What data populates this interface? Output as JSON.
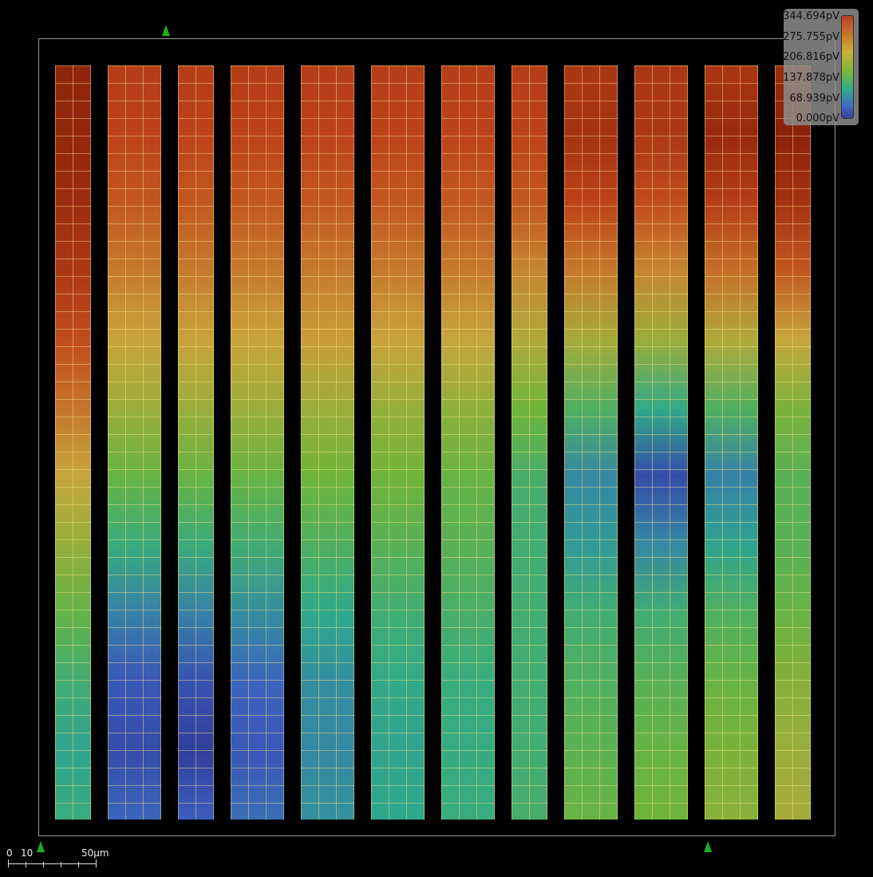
{
  "legend": {
    "labels": [
      "344.694pV",
      "275.755pV",
      "206.816pV",
      "137.878pV",
      "68.939pV",
      "0.000pV"
    ],
    "colormap": [
      "#7a1606",
      "#c0441a",
      "#c9a53c",
      "#6fb43a",
      "#2fa98a",
      "#3d5fc0",
      "#2a2f88"
    ]
  },
  "scale_bar": {
    "zero": "0",
    "ten": "10",
    "fifty": "50µm"
  },
  "markers": {
    "color": "#1cac26",
    "icon": "triangle-marker"
  },
  "heatmap": {
    "unit": "pV",
    "max": 344.694,
    "strips": [
      {
        "values": [
          0.95,
          0.94,
          0.92,
          0.88,
          0.82,
          0.75,
          0.66,
          0.57,
          0.47,
          0.38,
          0.32,
          0.36
        ]
      },
      {
        "values": [
          0.86,
          0.84,
          0.8,
          0.74,
          0.67,
          0.58,
          0.48,
          0.36,
          0.24,
          0.14,
          0.1,
          0.18
        ]
      },
      {
        "values": [
          0.86,
          0.84,
          0.8,
          0.74,
          0.67,
          0.58,
          0.48,
          0.36,
          0.24,
          0.12,
          0.06,
          0.16
        ]
      },
      {
        "values": [
          0.86,
          0.84,
          0.8,
          0.74,
          0.67,
          0.58,
          0.48,
          0.38,
          0.27,
          0.18,
          0.14,
          0.2
        ]
      },
      {
        "values": [
          0.86,
          0.84,
          0.8,
          0.74,
          0.68,
          0.58,
          0.5,
          0.42,
          0.33,
          0.27,
          0.26,
          0.28
        ]
      },
      {
        "values": [
          0.86,
          0.84,
          0.8,
          0.74,
          0.67,
          0.57,
          0.5,
          0.44,
          0.38,
          0.34,
          0.32,
          0.33
        ]
      },
      {
        "values": [
          0.86,
          0.84,
          0.8,
          0.74,
          0.66,
          0.56,
          0.48,
          0.44,
          0.4,
          0.36,
          0.35,
          0.36
        ]
      },
      {
        "values": [
          0.86,
          0.84,
          0.8,
          0.72,
          0.62,
          0.5,
          0.4,
          0.38,
          0.38,
          0.38,
          0.38,
          0.4
        ]
      },
      {
        "values": [
          0.88,
          0.9,
          0.84,
          0.74,
          0.6,
          0.42,
          0.26,
          0.3,
          0.38,
          0.42,
          0.45,
          0.48
        ]
      },
      {
        "values": [
          0.88,
          0.88,
          0.82,
          0.72,
          0.58,
          0.34,
          0.1,
          0.26,
          0.38,
          0.44,
          0.48,
          0.5
        ]
      },
      {
        "values": [
          0.88,
          0.93,
          0.86,
          0.76,
          0.62,
          0.42,
          0.24,
          0.32,
          0.42,
          0.48,
          0.52,
          0.55
        ]
      },
      {
        "values": [
          0.92,
          0.96,
          0.9,
          0.8,
          0.66,
          0.52,
          0.44,
          0.44,
          0.48,
          0.54,
          0.58,
          0.6
        ]
      }
    ]
  }
}
